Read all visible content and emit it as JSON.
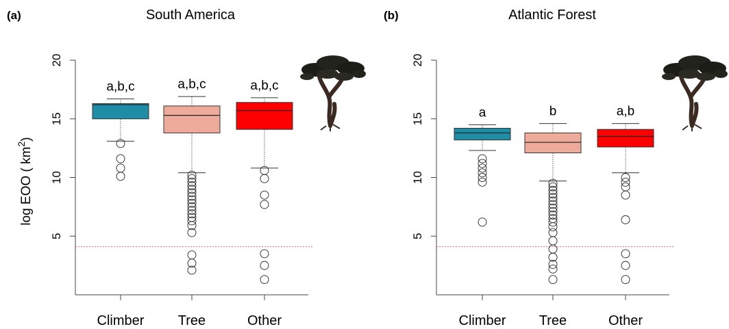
{
  "ylabel": "log EOO ( km",
  "ylabel_sup": "2",
  "ylabel_close": ")",
  "icon": "tree-icon",
  "colors": {
    "Climber": "#1f8da5",
    "Tree": "#eeab9b",
    "Other": "#ff0000",
    "reference_line": "#e05050"
  },
  "chart_data": [
    {
      "type": "box",
      "panel_label": "(a)",
      "title": "South America",
      "categories": [
        "Climber",
        "Tree",
        "Other"
      ],
      "ylim": [
        0,
        20
      ],
      "yticks": [
        5,
        10,
        15,
        20
      ],
      "reference_line": 4.1,
      "grid": false,
      "boxes": [
        {
          "name": "Climber",
          "whisker_low": 13.1,
          "q1": 15.0,
          "median": 16.2,
          "q3": 16.3,
          "whisker_high": 16.7,
          "outliers": [
            12.9,
            11.6,
            10.8,
            10.1
          ],
          "label": "a,b,c"
        },
        {
          "name": "Tree",
          "whisker_low": 10.4,
          "q1": 13.8,
          "median": 15.3,
          "q3": 16.1,
          "whisker_high": 16.9,
          "outliers": [
            10.2,
            9.9,
            9.6,
            9.3,
            9.0,
            8.7,
            8.4,
            8.1,
            7.8,
            7.5,
            7.2,
            6.9,
            6.6,
            6.3,
            5.9,
            5.3,
            3.4,
            2.7,
            2.1
          ],
          "label": "a,b,c"
        },
        {
          "name": "Other",
          "whisker_low": 10.8,
          "q1": 14.1,
          "median": 15.7,
          "q3": 16.4,
          "whisker_high": 16.8,
          "outliers": [
            10.6,
            9.9,
            8.5,
            7.7,
            3.5,
            2.5,
            1.3
          ],
          "label": "a,b,c"
        }
      ]
    },
    {
      "type": "box",
      "panel_label": "(b)",
      "title": "Atlantic Forest",
      "categories": [
        "Climber",
        "Tree",
        "Other"
      ],
      "ylim": [
        0,
        20
      ],
      "yticks": [
        5,
        10,
        15,
        20
      ],
      "reference_line": 4.1,
      "grid": false,
      "boxes": [
        {
          "name": "Climber",
          "whisker_low": 12.3,
          "q1": 13.2,
          "median": 13.8,
          "q3": 14.2,
          "whisker_high": 14.5,
          "outliers": [
            11.6,
            11.2,
            10.8,
            10.4,
            10.0,
            9.6,
            6.2
          ],
          "label": "a"
        },
        {
          "name": "Tree",
          "whisker_low": 9.7,
          "q1": 12.1,
          "median": 13.0,
          "q3": 13.8,
          "whisker_high": 14.6,
          "outliers": [
            9.5,
            9.2,
            8.9,
            8.6,
            8.3,
            8.0,
            7.7,
            7.4,
            7.1,
            6.8,
            6.5,
            6.2,
            5.8,
            5.3,
            4.6,
            3.9,
            3.2,
            2.6,
            2.2,
            1.3
          ],
          "label": "b"
        },
        {
          "name": "Other",
          "whisker_low": 10.4,
          "q1": 12.6,
          "median": 13.5,
          "q3": 14.1,
          "whisker_high": 14.6,
          "outliers": [
            10.0,
            9.6,
            9.2,
            8.5,
            6.4,
            3.5,
            2.5,
            1.3
          ],
          "label": "a,b"
        }
      ]
    }
  ]
}
